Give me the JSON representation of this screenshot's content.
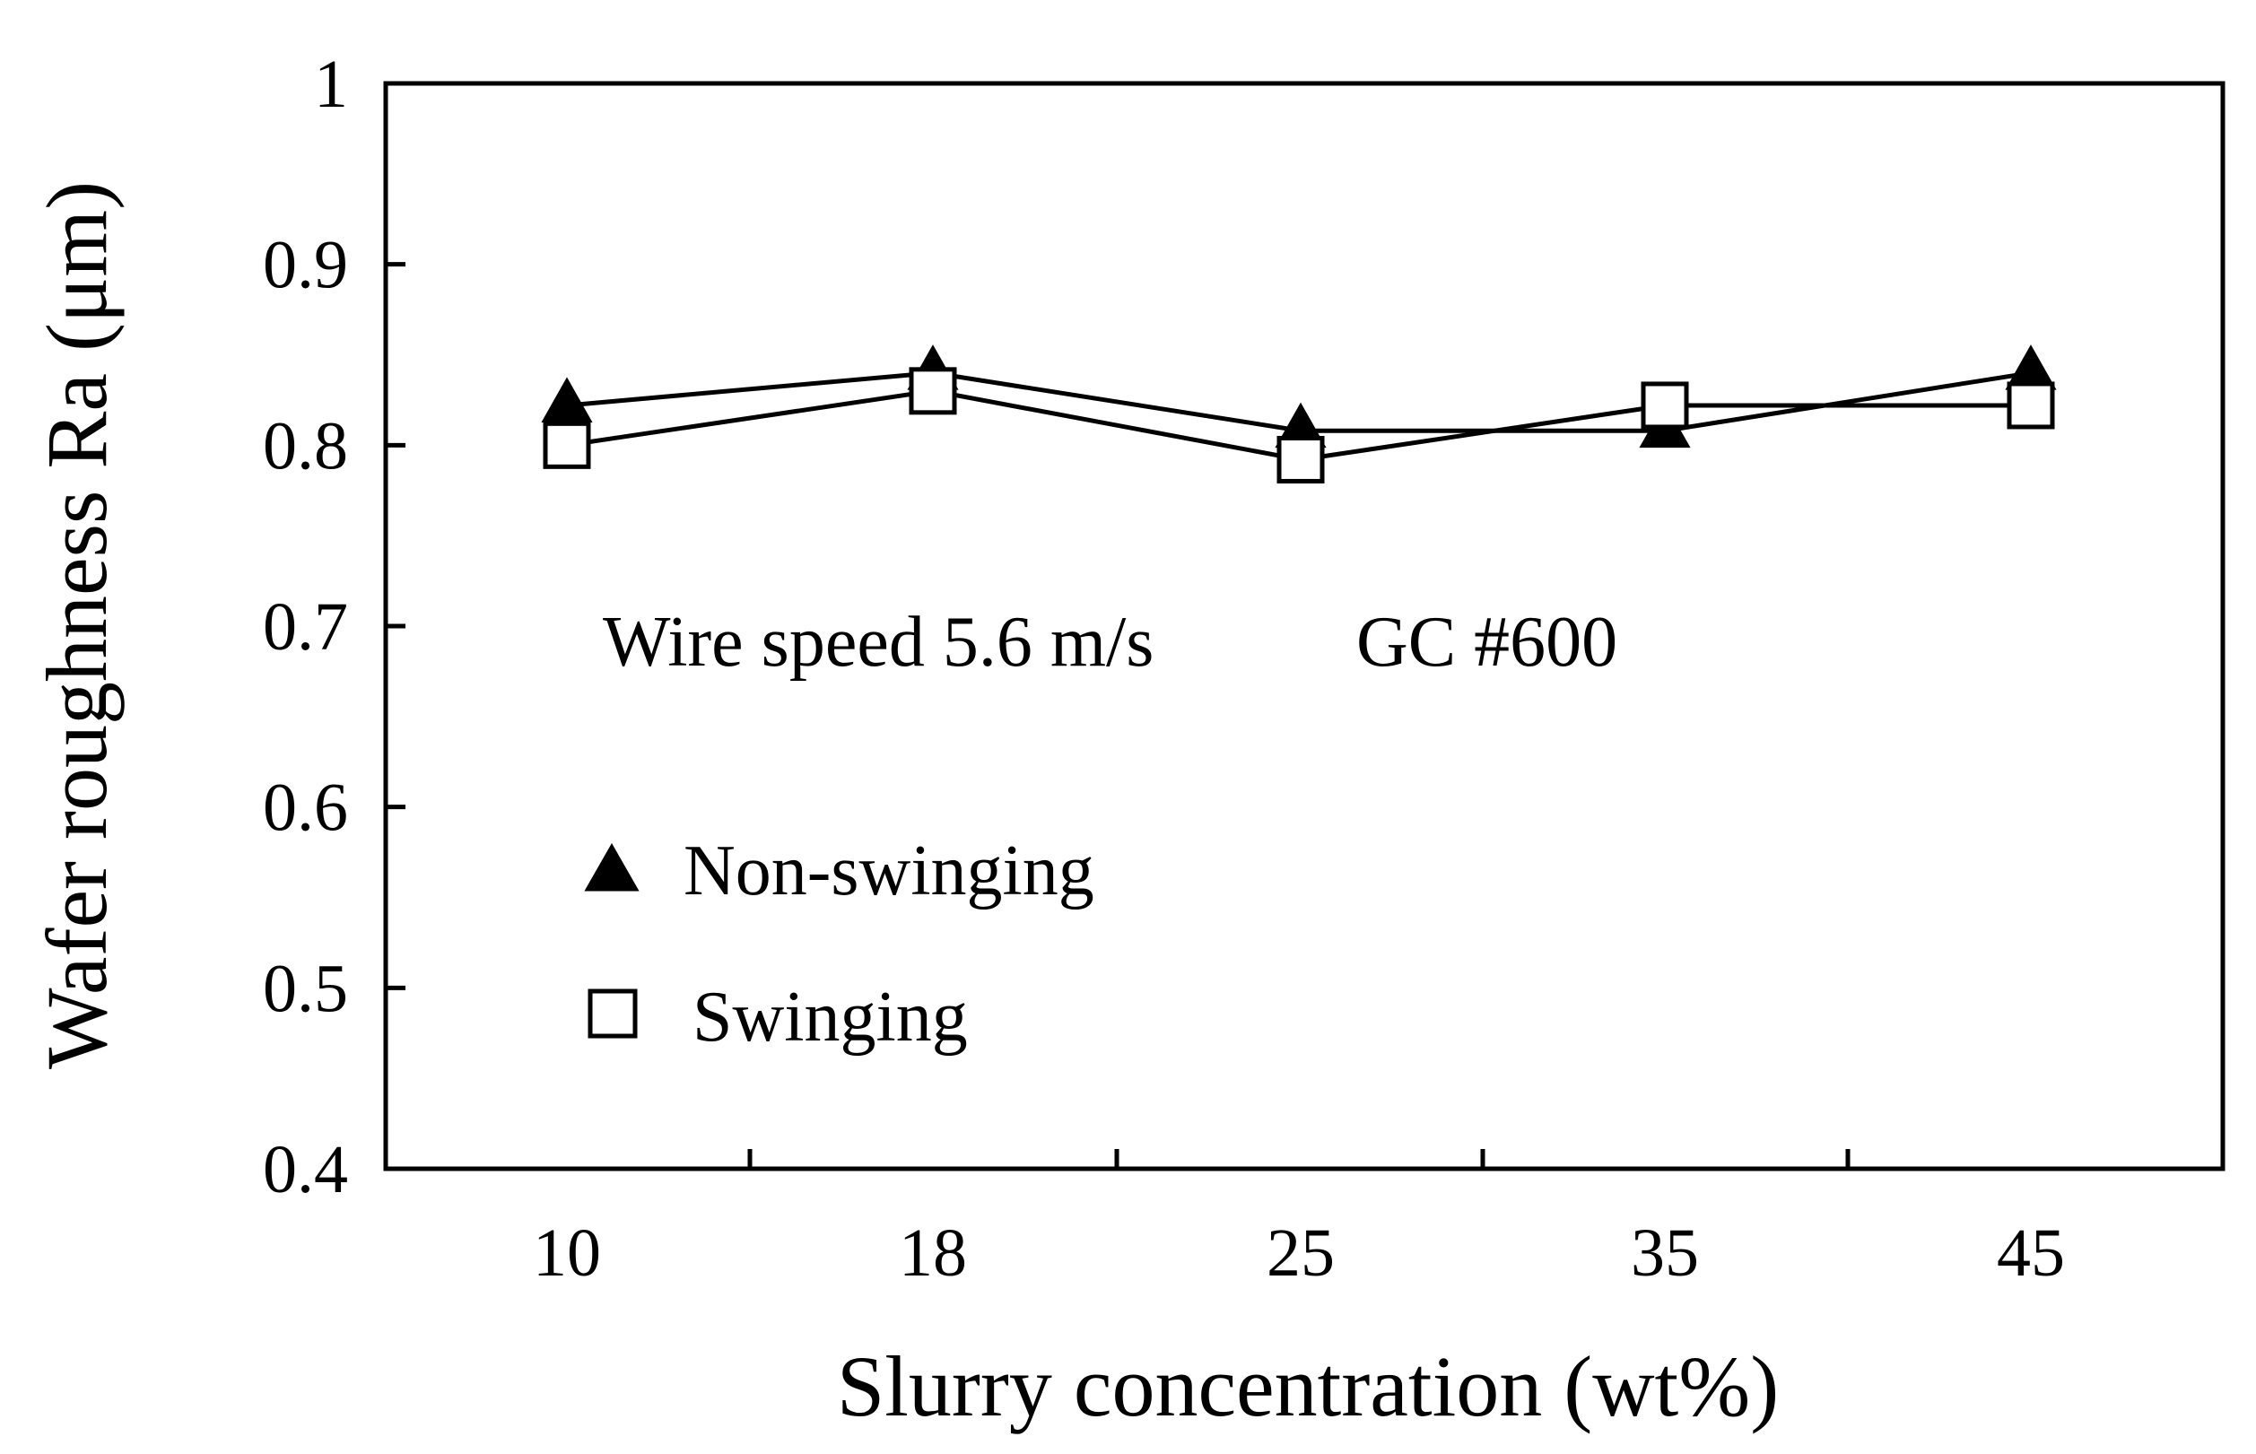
{
  "chart_data": {
    "type": "line",
    "title": "",
    "xlabel": "Slurry concentration (wt%)",
    "ylabel": "Wafer roughness Ra (μm)",
    "categories": [
      "10",
      "18",
      "25",
      "35",
      "45"
    ],
    "ylim": [
      0.4,
      1.0
    ],
    "yticks": [
      "0.4",
      "0.5",
      "0.6",
      "0.7",
      "0.8",
      "0.9",
      "1"
    ],
    "yticks_values": [
      0.4,
      0.5,
      0.6,
      0.7,
      0.8,
      0.9,
      1.0
    ],
    "grid": false,
    "series": [
      {
        "name": "Non-swinging",
        "marker": "filled-triangle",
        "values": [
          0.822,
          0.84,
          0.808,
          0.808,
          0.84
        ]
      },
      {
        "name": "Swinging",
        "marker": "open-square",
        "values": [
          0.8,
          0.83,
          0.792,
          0.822,
          0.822
        ]
      }
    ],
    "annotations": [
      "Wire speed 5.6 m/s",
      "GC #600"
    ],
    "legend_position": "lower-left (inside plot)",
    "colors": {
      "line": "#000000",
      "marker_fill_filled": "#000000",
      "marker_fill_open": "#ffffff"
    }
  }
}
